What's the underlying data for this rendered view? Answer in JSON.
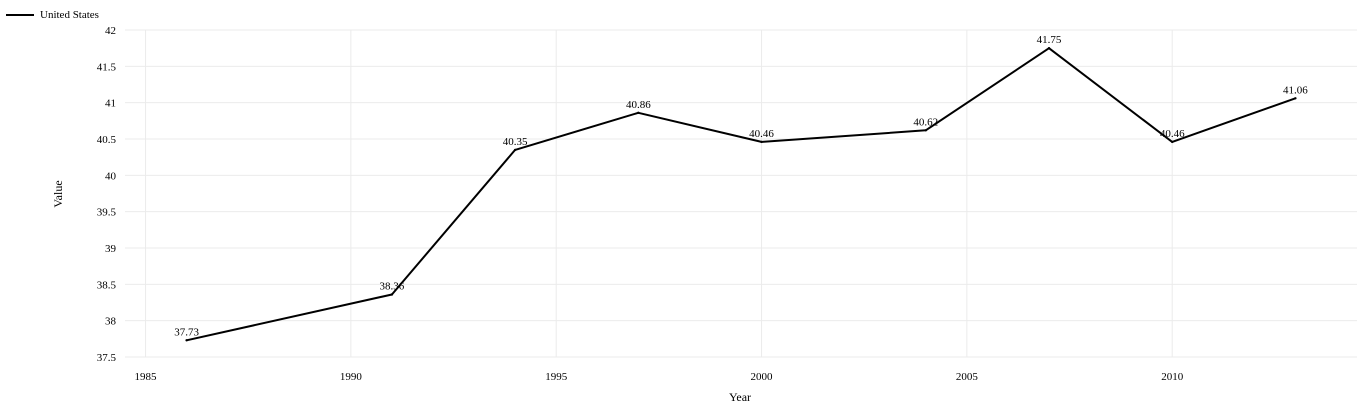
{
  "chart_data": {
    "type": "line",
    "title": "",
    "xlabel": "Year",
    "ylabel": "Value",
    "xlim": [
      1984.5,
      2014.5
    ],
    "ylim": [
      37.5,
      42
    ],
    "xticks": [
      1985,
      1990,
      1995,
      2000,
      2005,
      2010
    ],
    "yticks": [
      37.5,
      38,
      38.5,
      39,
      39.5,
      40,
      40.5,
      41,
      41.5,
      42
    ],
    "grid": true,
    "legend_position": "top-left",
    "series": [
      {
        "name": "United States",
        "color": "#000000",
        "x": [
          1986,
          1991,
          1994,
          1997,
          2000,
          2004,
          2007,
          2010,
          2013
        ],
        "y": [
          37.73,
          38.36,
          40.35,
          40.86,
          40.46,
          40.62,
          41.75,
          40.46,
          41.06
        ]
      }
    ]
  }
}
